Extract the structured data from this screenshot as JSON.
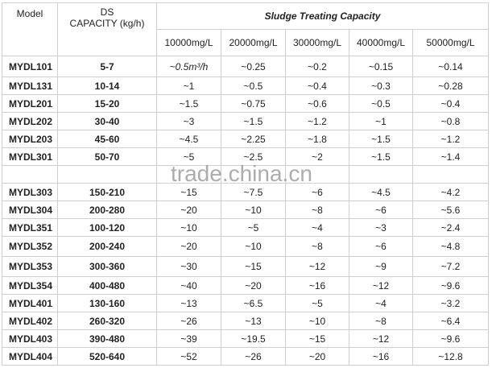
{
  "header": {
    "model": "Model",
    "ds_line1": "DS",
    "ds_line2": "CAPACITY (kg/h)",
    "group": "Sludge Treating Capacity",
    "concentrations": [
      "10000mg/L",
      "20000mg/L",
      "30000mg/L",
      "40000mg/L",
      "50000mg/L"
    ]
  },
  "rows": [
    {
      "model": "MYDL101",
      "ds": "5-7",
      "v": [
        "~0.5m³/h",
        "~0.25",
        "~0.2",
        "~0.15",
        "~0.14"
      ]
    },
    {
      "model": "MYDL131",
      "ds": "10-14",
      "v": [
        "~1",
        "~0.5",
        "~0.4",
        "~0.3",
        "~0.28"
      ]
    },
    {
      "model": "MYDL201",
      "ds": "15-20",
      "v": [
        "~1.5",
        "~0.75",
        "~0.6",
        "~0.5",
        "~0.4"
      ]
    },
    {
      "model": "MYDL202",
      "ds": "30-40",
      "v": [
        "~3",
        "~1.5",
        "~1.2",
        "~1",
        "~0.8"
      ]
    },
    {
      "model": "MYDL203",
      "ds": "45-60",
      "v": [
        "~4.5",
        "~2.25",
        "~1.8",
        "~1.5",
        "~1.2"
      ]
    },
    {
      "model": "MYDL301",
      "ds": "50-70",
      "v": [
        "~5",
        "~2.5",
        "~2",
        "~1.5",
        "~1.4"
      ]
    },
    {
      "model": "MYDL303",
      "ds": "150-210",
      "v": [
        "~15",
        "~7.5",
        "~6",
        "~4.5",
        "~4.2"
      ]
    },
    {
      "model": "MYDL304",
      "ds": "200-280",
      "v": [
        "~20",
        "~10",
        "~8",
        "~6",
        "~5.6"
      ]
    },
    {
      "model": "MYDL351",
      "ds": "100-120",
      "v": [
        "~10",
        "~5",
        "~4",
        "~3",
        "~2.4"
      ]
    },
    {
      "model": "MYDL352",
      "ds": "200-240",
      "v": [
        "~20",
        "~10",
        "~8",
        "~6",
        "~4.8"
      ]
    },
    {
      "model": "MYDL353",
      "ds": "300-360",
      "v": [
        "~30",
        "~15",
        "~12",
        "~9",
        "~7.2"
      ]
    },
    {
      "model": "MYDL354",
      "ds": "400-480",
      "v": [
        "~40",
        "~20",
        "~16",
        "~12",
        "~9.6"
      ]
    },
    {
      "model": "MYDL401",
      "ds": "130-160",
      "v": [
        "~13",
        "~6.5",
        "~5",
        "~4",
        "~3.2"
      ]
    },
    {
      "model": "MYDL402",
      "ds": "260-320",
      "v": [
        "~26",
        "~13",
        "~10",
        "~8",
        "~6.4"
      ]
    },
    {
      "model": "MYDL403",
      "ds": "390-480",
      "v": [
        "~39",
        "~19.5",
        "~15",
        "~12",
        "~9.6"
      ]
    },
    {
      "model": "MYDL404",
      "ds": "520-640",
      "v": [
        "~52",
        "~26",
        "~20",
        "~16",
        "~12.8"
      ]
    }
  ],
  "watermark": "trade.china.cn"
}
